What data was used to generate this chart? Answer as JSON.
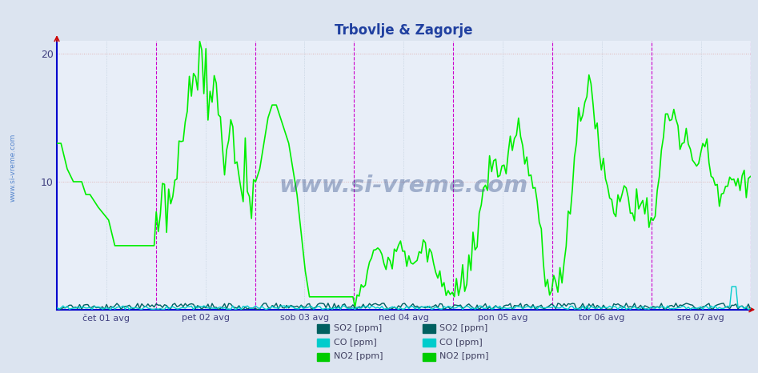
{
  "title": "Trbovlje & Zagorje",
  "bg_color": "#dce4f0",
  "plot_bg_color": "#e8eef8",
  "grid_color": "#b8c8d8",
  "grid_dotted_color": "#c8d0e0",
  "axis_color": "#0000cc",
  "title_color": "#2040a0",
  "tick_label_color": "#404080",
  "ylim": [
    0,
    21
  ],
  "yticks": [
    10,
    20
  ],
  "x_labels": [
    "čet 01 avg",
    "pet 02 avg",
    "sob 03 avg",
    "ned 04 avg",
    "pon 05 avg",
    "tor 06 avg",
    "sre 07 avg"
  ],
  "vline_color": "#cc00cc",
  "so2_color": "#006060",
  "co_color": "#00cccc",
  "no2_color": "#00ee00",
  "so2_lw": 1.0,
  "co_lw": 1.0,
  "no2_lw": 1.2,
  "legend_so2_color": "#006060",
  "legend_co_color": "#00cccc",
  "legend_no2_color": "#00cc00",
  "watermark_color": "#1a3a7a",
  "watermark_alpha": 0.35,
  "side_watermark_color": "#2060c0",
  "arrow_color": "#cc0000"
}
